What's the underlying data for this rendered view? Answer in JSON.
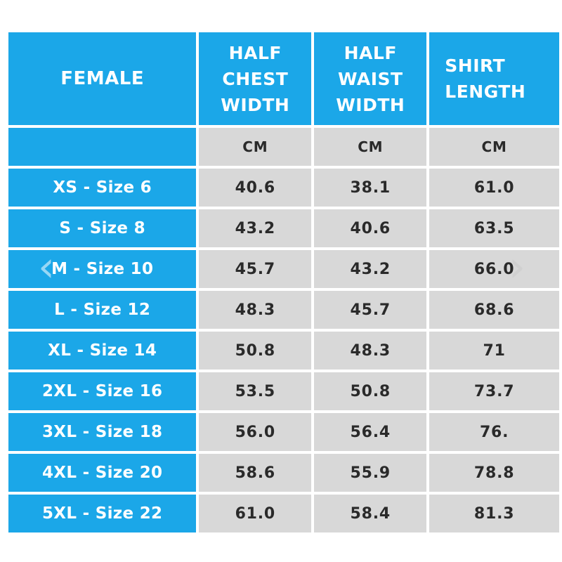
{
  "header": {
    "gender": "FEMALE",
    "chest": "HALF\nCHEST\nWIDTH",
    "waist": "HALF\nWAIST\nWIDTH",
    "length": "SHIRT\nLENGTH"
  },
  "units": {
    "chest": "CM",
    "waist": "CM",
    "length": "CM"
  },
  "rows": [
    {
      "size": "XS - Size 6",
      "chest": "40.6",
      "waist": "38.1",
      "length": "61.0"
    },
    {
      "size": "S - Size 8",
      "chest": "43.2",
      "waist": "40.6",
      "length": "63.5"
    },
    {
      "size": "M - Size 10",
      "chest": "45.7",
      "waist": "43.2",
      "length": "66.0"
    },
    {
      "size": "L - Size 12",
      "chest": "48.3",
      "waist": "45.7",
      "length": "68.6"
    },
    {
      "size": "XL - Size 14",
      "chest": "50.8",
      "waist": "48.3",
      "length": "71"
    },
    {
      "size": "2XL - Size 16",
      "chest": "53.5",
      "waist": "50.8",
      "length": "73.7"
    },
    {
      "size": "3XL - Size 18",
      "chest": "56.0",
      "waist": "56.4",
      "length": "76."
    },
    {
      "size": "4XL - Size 20",
      "chest": "58.6",
      "waist": "55.9",
      "length": "78.8"
    },
    {
      "size": "5XL - Size 22",
      "chest": "61.0",
      "waist": "58.4",
      "length": "81.3"
    }
  ],
  "colors": {
    "header_blue": "#1ba7e8",
    "cell_grey": "#d8d8d8",
    "text_dark": "#2a2a2a"
  },
  "icons": {
    "prev": "chevron-left-icon",
    "next": "chevron-right-icon"
  }
}
